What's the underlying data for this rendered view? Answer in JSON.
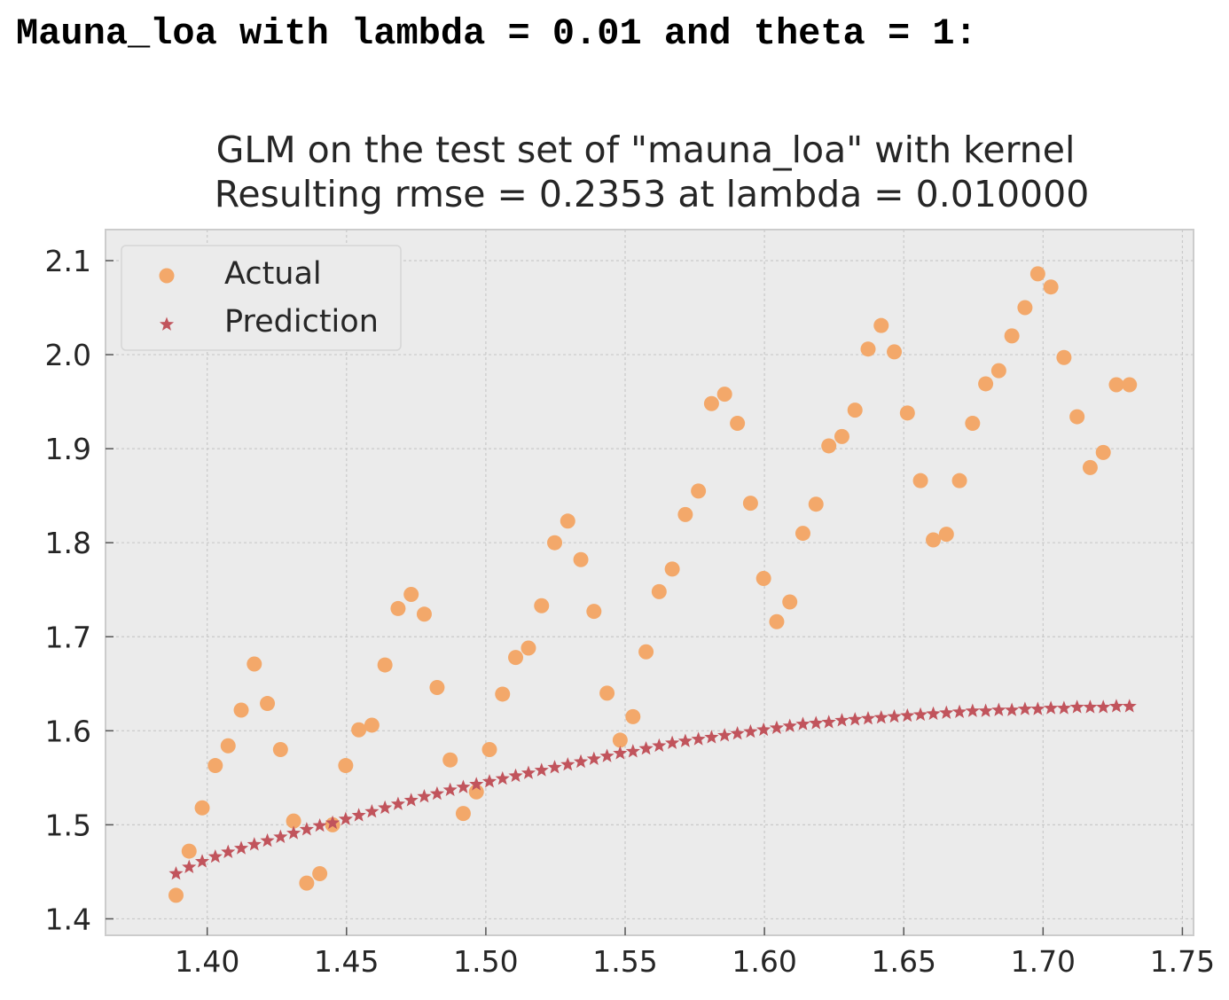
{
  "header": {
    "text": "Mauna_loa with lambda = 0.01 and theta = 1:"
  },
  "colors": {
    "actual": "#f3a86a",
    "prediction": "#c1545c",
    "plot_bg": "#ebebeb",
    "grid": "#c9c9c9",
    "frame": "#cccccc"
  },
  "chart_data": {
    "type": "scatter",
    "title": "GLM on the test set of \"mauna_loa\" with kernel",
    "subtitle": "Resulting rmse = 0.2353 at lambda = 0.010000",
    "xlabel": "",
    "ylabel": "",
    "xlim": [
      1.3635,
      1.754
    ],
    "ylim": [
      1.3825,
      2.133
    ],
    "xticks": [
      1.4,
      1.45,
      1.5,
      1.55,
      1.6,
      1.65,
      1.7,
      1.75
    ],
    "yticks": [
      1.4,
      1.5,
      1.6,
      1.7,
      1.8,
      1.9,
      2.0,
      2.1
    ],
    "xtick_labels": [
      "1.40",
      "1.45",
      "1.50",
      "1.55",
      "1.60",
      "1.65",
      "1.70",
      "1.75"
    ],
    "ytick_labels": [
      "1.4",
      "1.5",
      "1.6",
      "1.7",
      "1.8",
      "1.9",
      "2.0",
      "2.1"
    ],
    "grid": true,
    "legend_position": "top-left",
    "series": [
      {
        "name": "Actual",
        "marker": "circle",
        "x": [
          1.3888,
          1.3935,
          1.3982,
          1.4029,
          1.4075,
          1.4122,
          1.4169,
          1.4216,
          1.4263,
          1.431,
          1.4357,
          1.4404,
          1.445,
          1.4497,
          1.4544,
          1.4591,
          1.4638,
          1.4685,
          1.4732,
          1.4779,
          1.4825,
          1.4872,
          1.4919,
          1.4966,
          1.5013,
          1.506,
          1.5107,
          1.5153,
          1.52,
          1.5247,
          1.5294,
          1.5341,
          1.5388,
          1.5435,
          1.5482,
          1.5528,
          1.5575,
          1.5622,
          1.5669,
          1.5716,
          1.5763,
          1.581,
          1.5857,
          1.5903,
          1.595,
          1.5997,
          1.6044,
          1.6091,
          1.6138,
          1.6185,
          1.6231,
          1.6278,
          1.6325,
          1.6372,
          1.6419,
          1.6466,
          1.6513,
          1.656,
          1.6606,
          1.6653,
          1.67,
          1.6747,
          1.6794,
          1.6841,
          1.6888,
          1.6935,
          1.6981,
          1.7028,
          1.7075,
          1.7122,
          1.7169,
          1.7216,
          1.7263,
          1.731
        ],
        "y": [
          1.425,
          1.472,
          1.518,
          1.563,
          1.584,
          1.622,
          1.671,
          1.629,
          1.58,
          1.504,
          1.438,
          1.448,
          1.5,
          1.563,
          1.601,
          1.606,
          1.67,
          1.73,
          1.745,
          1.724,
          1.646,
          1.569,
          1.512,
          1.535,
          1.58,
          1.639,
          1.678,
          1.688,
          1.733,
          1.8,
          1.823,
          1.782,
          1.727,
          1.64,
          1.59,
          1.615,
          1.684,
          1.748,
          1.772,
          1.83,
          1.855,
          1.948,
          1.958,
          1.927,
          1.842,
          1.762,
          1.716,
          1.737,
          1.81,
          1.841,
          1.903,
          1.913,
          1.941,
          2.006,
          2.031,
          2.003,
          1.938,
          1.866,
          1.803,
          1.809,
          1.866,
          1.927,
          1.969,
          1.983,
          2.02,
          2.05,
          2.086,
          2.072,
          1.997,
          1.934,
          1.88,
          1.896,
          1.968,
          1.968
        ]
      },
      {
        "name": "Prediction",
        "marker": "star",
        "x": [
          1.3888,
          1.3935,
          1.3982,
          1.4029,
          1.4075,
          1.4122,
          1.4169,
          1.4216,
          1.4263,
          1.431,
          1.4357,
          1.4404,
          1.445,
          1.4497,
          1.4544,
          1.4591,
          1.4638,
          1.4685,
          1.4732,
          1.4779,
          1.4825,
          1.4872,
          1.4919,
          1.4966,
          1.5013,
          1.506,
          1.5107,
          1.5153,
          1.52,
          1.5247,
          1.5294,
          1.5341,
          1.5388,
          1.5435,
          1.5482,
          1.5528,
          1.5575,
          1.5622,
          1.5669,
          1.5716,
          1.5763,
          1.581,
          1.5857,
          1.5903,
          1.595,
          1.5997,
          1.6044,
          1.6091,
          1.6138,
          1.6185,
          1.6231,
          1.6278,
          1.6325,
          1.6372,
          1.6419,
          1.6466,
          1.6513,
          1.656,
          1.6606,
          1.6653,
          1.67,
          1.6747,
          1.6794,
          1.6841,
          1.6888,
          1.6935,
          1.6981,
          1.7028,
          1.7075,
          1.7122,
          1.7169,
          1.7216,
          1.7263,
          1.731
        ],
        "y": [
          1.448,
          1.455,
          1.461,
          1.466,
          1.471,
          1.475,
          1.479,
          1.483,
          1.487,
          1.491,
          1.495,
          1.499,
          1.502,
          1.506,
          1.51,
          1.514,
          1.518,
          1.522,
          1.526,
          1.53,
          1.533,
          1.537,
          1.54,
          1.543,
          1.546,
          1.549,
          1.552,
          1.555,
          1.558,
          1.561,
          1.564,
          1.567,
          1.57,
          1.573,
          1.576,
          1.578,
          1.581,
          1.584,
          1.587,
          1.589,
          1.591,
          1.593,
          1.595,
          1.597,
          1.599,
          1.601,
          1.603,
          1.605,
          1.607,
          1.608,
          1.609,
          1.611,
          1.612,
          1.613,
          1.614,
          1.615,
          1.616,
          1.617,
          1.618,
          1.619,
          1.62,
          1.621,
          1.621,
          1.622,
          1.622,
          1.623,
          1.623,
          1.624,
          1.624,
          1.625,
          1.625,
          1.625,
          1.626,
          1.626
        ]
      }
    ]
  }
}
